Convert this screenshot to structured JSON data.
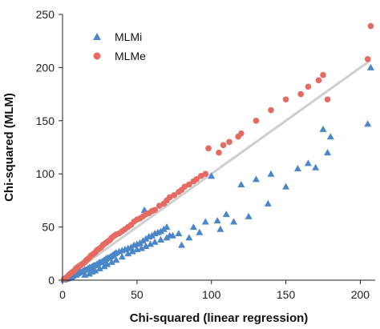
{
  "chart_data": {
    "type": "scatter",
    "title": "",
    "xlabel": "Chi-squared (linear regression)",
    "ylabel": "Chi-squared (MLM)",
    "xlim": [
      0,
      210
    ],
    "ylim": [
      0,
      250
    ],
    "xticks": [
      "0",
      "50",
      "100",
      "150",
      "200"
    ],
    "yticks": [
      "0",
      "50",
      "100",
      "150",
      "200",
      "250"
    ],
    "xtick_values": [
      0,
      50,
      100,
      150,
      200
    ],
    "ytick_values": [
      0,
      50,
      100,
      150,
      200,
      250
    ],
    "grid": false,
    "legend_position": "top-left",
    "reference_line": {
      "from": [
        0,
        0
      ],
      "to": [
        207,
        207
      ],
      "color": "#cfcfcf"
    },
    "series": [
      {
        "name": "MLMi",
        "marker": "triangle",
        "color": "#4a86c8",
        "points": [
          [
            1,
            0.5
          ],
          [
            2,
            1
          ],
          [
            3,
            1.5
          ],
          [
            4,
            2
          ],
          [
            5,
            3
          ],
          [
            6,
            3
          ],
          [
            7,
            4
          ],
          [
            8,
            5
          ],
          [
            9,
            5
          ],
          [
            10,
            6
          ],
          [
            11,
            7
          ],
          [
            12,
            8
          ],
          [
            13,
            8
          ],
          [
            14,
            9
          ],
          [
            15,
            10
          ],
          [
            16,
            10
          ],
          [
            17,
            11
          ],
          [
            18,
            12
          ],
          [
            19,
            12
          ],
          [
            20,
            13
          ],
          [
            21,
            14
          ],
          [
            22,
            14
          ],
          [
            23,
            15
          ],
          [
            24,
            16
          ],
          [
            25,
            17
          ],
          [
            26,
            17
          ],
          [
            27,
            18
          ],
          [
            28,
            19
          ],
          [
            29,
            20
          ],
          [
            30,
            21
          ],
          [
            31,
            21
          ],
          [
            32,
            22
          ],
          [
            33,
            23
          ],
          [
            34,
            24
          ],
          [
            35,
            25
          ],
          [
            36,
            26
          ],
          [
            38,
            27
          ],
          [
            40,
            28
          ],
          [
            42,
            29
          ],
          [
            44,
            30
          ],
          [
            46,
            31
          ],
          [
            48,
            33
          ],
          [
            50,
            34
          ],
          [
            52,
            35
          ],
          [
            54,
            37
          ],
          [
            56,
            39
          ],
          [
            58,
            41
          ],
          [
            60,
            42
          ],
          [
            62,
            44
          ],
          [
            64,
            45
          ],
          [
            66,
            46
          ],
          [
            68,
            48
          ],
          [
            70,
            50
          ],
          [
            55,
            66
          ],
          [
            72,
            42
          ],
          [
            80,
            33
          ],
          [
            85,
            40
          ],
          [
            88,
            50
          ],
          [
            92,
            45
          ],
          [
            96,
            55
          ],
          [
            100,
            98
          ],
          [
            104,
            56
          ],
          [
            106,
            48
          ],
          [
            110,
            62
          ],
          [
            115,
            55
          ],
          [
            120,
            90
          ],
          [
            125,
            60
          ],
          [
            130,
            95
          ],
          [
            138,
            72
          ],
          [
            140,
            100
          ],
          [
            150,
            88
          ],
          [
            158,
            105
          ],
          [
            165,
            110
          ],
          [
            170,
            106
          ],
          [
            175,
            142
          ],
          [
            178,
            120
          ],
          [
            180,
            135
          ],
          [
            205,
            147
          ],
          [
            207,
            200
          ],
          [
            15,
            5
          ],
          [
            18,
            6
          ],
          [
            20,
            8
          ],
          [
            22,
            9
          ],
          [
            25,
            11
          ],
          [
            28,
            13
          ],
          [
            30,
            15
          ],
          [
            33,
            17
          ],
          [
            36,
            19
          ],
          [
            40,
            22
          ],
          [
            44,
            25
          ],
          [
            47,
            27
          ],
          [
            50,
            29
          ],
          [
            53,
            30
          ],
          [
            56,
            32
          ],
          [
            59,
            34
          ],
          [
            62,
            36
          ],
          [
            66,
            38
          ],
          [
            70,
            40
          ],
          [
            74,
            42
          ],
          [
            78,
            44
          ]
        ]
      },
      {
        "name": "MLMe",
        "marker": "circle",
        "color": "#e46a62",
        "points": [
          [
            1,
            1
          ],
          [
            2,
            2
          ],
          [
            3,
            3
          ],
          [
            4,
            4.5
          ],
          [
            5,
            6
          ],
          [
            6,
            7
          ],
          [
            7,
            8
          ],
          [
            8,
            9
          ],
          [
            9,
            11
          ],
          [
            10,
            12
          ],
          [
            11,
            13
          ],
          [
            12,
            14
          ],
          [
            13,
            15
          ],
          [
            14,
            16
          ],
          [
            15,
            17
          ],
          [
            16,
            19
          ],
          [
            17,
            20
          ],
          [
            18,
            21
          ],
          [
            19,
            23
          ],
          [
            20,
            24
          ],
          [
            21,
            25
          ],
          [
            22,
            26
          ],
          [
            23,
            28
          ],
          [
            24,
            29
          ],
          [
            25,
            30
          ],
          [
            26,
            31
          ],
          [
            27,
            33
          ],
          [
            28,
            34
          ],
          [
            29,
            35
          ],
          [
            30,
            36
          ],
          [
            31,
            37
          ],
          [
            32,
            38
          ],
          [
            33,
            40
          ],
          [
            34,
            41
          ],
          [
            35,
            42
          ],
          [
            36,
            43
          ],
          [
            38,
            44
          ],
          [
            40,
            46
          ],
          [
            42,
            48
          ],
          [
            44,
            50
          ],
          [
            46,
            52
          ],
          [
            48,
            55
          ],
          [
            50,
            57
          ],
          [
            52,
            58
          ],
          [
            54,
            60
          ],
          [
            56,
            62
          ],
          [
            58,
            63
          ],
          [
            60,
            65
          ],
          [
            62,
            66
          ],
          [
            65,
            70
          ],
          [
            68,
            72
          ],
          [
            70,
            75
          ],
          [
            72,
            78
          ],
          [
            75,
            80
          ],
          [
            78,
            83
          ],
          [
            80,
            85
          ],
          [
            82,
            88
          ],
          [
            85,
            90
          ],
          [
            88,
            93
          ],
          [
            90,
            95
          ],
          [
            93,
            98
          ],
          [
            96,
            100
          ],
          [
            98,
            124
          ],
          [
            105,
            120
          ],
          [
            108,
            127
          ],
          [
            112,
            130
          ],
          [
            118,
            135
          ],
          [
            120,
            138
          ],
          [
            130,
            150
          ],
          [
            140,
            160
          ],
          [
            150,
            170
          ],
          [
            160,
            175
          ],
          [
            165,
            182
          ],
          [
            172,
            188
          ],
          [
            175,
            193
          ],
          [
            178,
            170
          ],
          [
            205,
            208
          ],
          [
            207,
            239
          ]
        ]
      }
    ]
  }
}
